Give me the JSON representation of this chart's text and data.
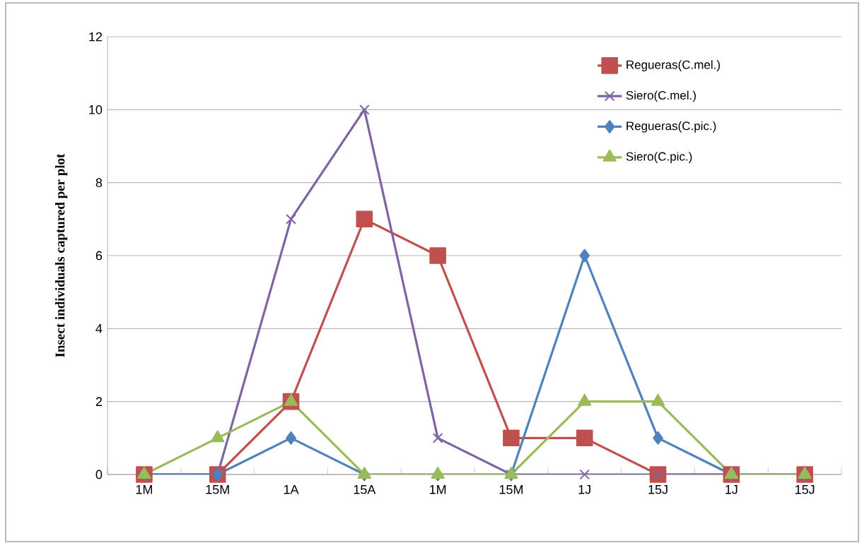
{
  "chart_data": {
    "type": "line",
    "ylabel": "Insect individuals captured per plot",
    "categories": [
      "1M",
      "15M",
      "1A",
      "15A",
      "1M",
      "15M",
      "1J",
      "15J",
      "1J",
      "15J"
    ],
    "series": [
      {
        "name": "Regueras(C.mel.)",
        "color": "#c0504d",
        "marker": "square",
        "values": [
          0,
          0,
          2,
          7,
          6,
          1,
          1,
          0,
          0,
          0
        ]
      },
      {
        "name": "Siero(C.mel.)",
        "color": "#8064a2",
        "marker": "cross",
        "values": [
          0,
          0,
          7,
          10,
          1,
          0,
          0,
          0,
          0,
          0
        ]
      },
      {
        "name": "Regueras(C.pic.)",
        "color": "#4f81bd",
        "marker": "diamond",
        "values": [
          0,
          0,
          1,
          0,
          0,
          0,
          6,
          1,
          0,
          0
        ]
      },
      {
        "name": "Siero(C.pic.)",
        "color": "#9bbb59",
        "marker": "triangle",
        "values": [
          0,
          1,
          2,
          0,
          0,
          0,
          2,
          2,
          0,
          0
        ]
      }
    ],
    "ylim": [
      0,
      12
    ],
    "yticks": [
      0,
      2,
      4,
      6,
      8,
      10,
      12
    ],
    "grid": "y",
    "legend": "top right"
  }
}
